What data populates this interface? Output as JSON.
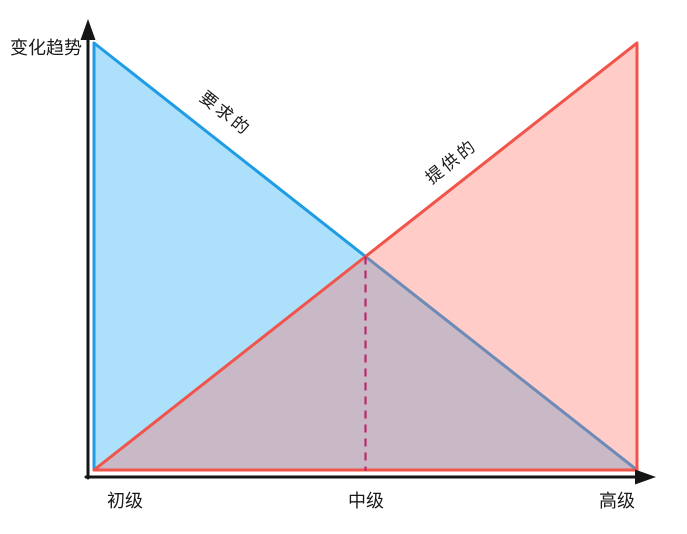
{
  "page": {
    "background": "#ffffff"
  },
  "chart_data": {
    "type": "area",
    "style": "hand-drawn",
    "title": "",
    "xlabel": "",
    "ylabel": "变化趋势",
    "categories": [
      "初级",
      "中级",
      "高级"
    ],
    "series": [
      {
        "name": "要求的",
        "color": "#1f9ce4",
        "fill": "#ade0fa",
        "values": [
          1,
          0.5,
          0
        ]
      },
      {
        "name": "提供的",
        "color": "#f0544b",
        "fill": "rgba(255,108,97,0.35)",
        "values": [
          0,
          0.5,
          1
        ]
      }
    ],
    "overlap_color": "#c8bfca",
    "axis_color": "#151515",
    "ylim": [
      0,
      1
    ],
    "grid": false,
    "legend": "labels-along-lines",
    "annotations": [
      {
        "type": "vline",
        "at_category": "中级",
        "to_value": 0.5,
        "style": "dashed",
        "color": "#b8296e",
        "meaning": "intersection of the two lines at the intermediate level"
      }
    ]
  }
}
